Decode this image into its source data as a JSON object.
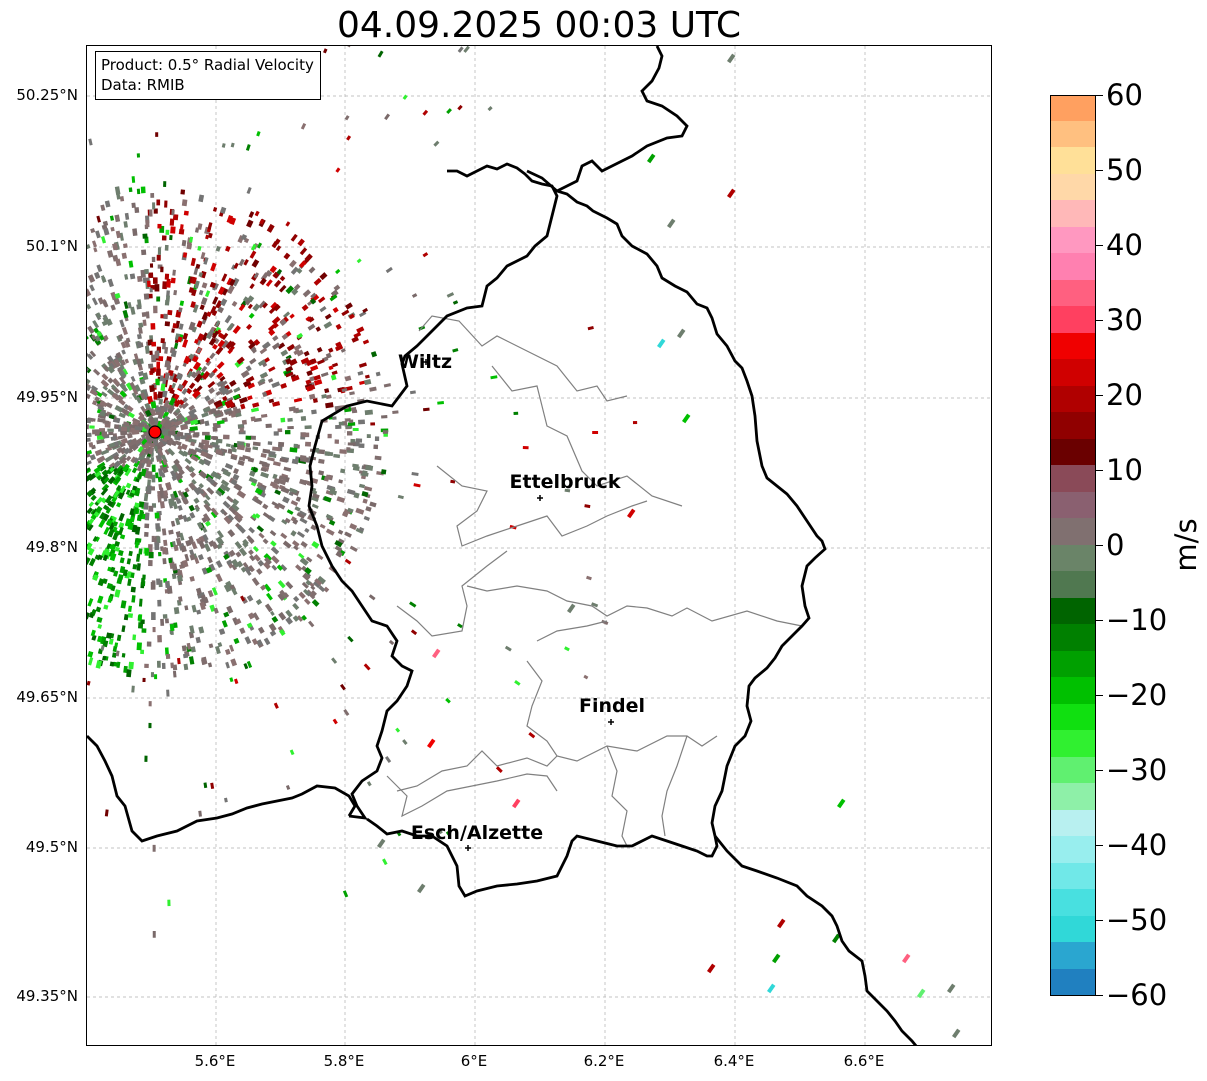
{
  "title": "04.09.2025 00:03 UTC",
  "info": {
    "product": "Product: 0.5° Radial Velocity",
    "data_source": "Data: RMIB"
  },
  "axes": {
    "lat_labels": [
      "50.25°N",
      "50.1°N",
      "49.95°N",
      "49.8°N",
      "49.65°N",
      "49.5°N",
      "49.35°N"
    ],
    "lon_labels": [
      "5.6°E",
      "5.8°E",
      "6°E",
      "6.2°E",
      "6.4°E",
      "6.6°E"
    ]
  },
  "cities": [
    {
      "name": "Wiltz"
    },
    {
      "name": "Ettelbruck"
    },
    {
      "name": "Findel"
    },
    {
      "name": "Esch/Alzette"
    }
  ],
  "colorbar": {
    "unit": "m/s",
    "tick_labels": [
      "60",
      "50",
      "40",
      "30",
      "20",
      "10",
      "0",
      "−10",
      "−20",
      "−30",
      "−40",
      "−50",
      "−60"
    ],
    "range": [
      -60,
      60
    ],
    "colors": [
      "#2080c0",
      "#2aa6d0",
      "#30d8d8",
      "#48e0e0",
      "#70e8e8",
      "#98eeee",
      "#b8f0f0",
      "#8ef0a8",
      "#60f070",
      "#30f030",
      "#10e010",
      "#00c000",
      "#00a000",
      "#008000",
      "#006400",
      "#507850",
      "#6a8468",
      "#807070",
      "#8a6070",
      "#8a4a58",
      "#6a0000",
      "#900000",
      "#b00000",
      "#d00000",
      "#f00000",
      "#ff4060",
      "#ff6080",
      "#ff80b0",
      "#ff98c0",
      "#ffb8b8",
      "#ffd8a8",
      "#ffe098",
      "#ffc080",
      "#ffa060"
    ]
  },
  "colors": {
    "border": "#000000",
    "cantons": "#808080",
    "grid": "#b0b0b0",
    "radar_site": "#ff0000"
  }
}
